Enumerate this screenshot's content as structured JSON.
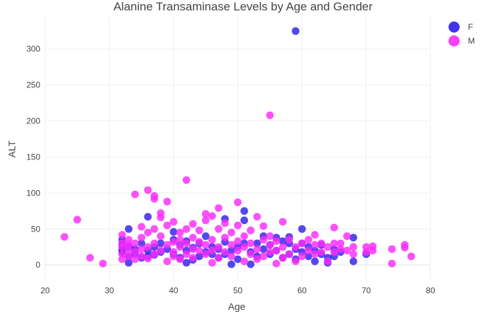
{
  "chart_data": {
    "type": "scatter",
    "title": "Alanine Transaminase Levels by Age and Gender",
    "xlabel": "Age",
    "ylabel": "ALT",
    "xlim": [
      20,
      80
    ],
    "ylim": [
      -22,
      345
    ],
    "xticks": [
      20,
      30,
      40,
      50,
      60,
      70,
      80
    ],
    "yticks": [
      0,
      50,
      100,
      150,
      200,
      250,
      300
    ],
    "grid": true,
    "legend_position": "top-right",
    "series": [
      {
        "name": "F",
        "color": "#2f1eea",
        "points": [
          [
            32,
            18
          ],
          [
            32,
            22
          ],
          [
            32,
            28
          ],
          [
            32,
            35
          ],
          [
            33,
            3
          ],
          [
            33,
            50
          ],
          [
            33,
            12
          ],
          [
            33,
            25
          ],
          [
            34,
            15
          ],
          [
            34,
            22
          ],
          [
            35,
            10
          ],
          [
            35,
            30
          ],
          [
            36,
            67
          ],
          [
            36,
            12
          ],
          [
            36,
            20
          ],
          [
            37,
            14
          ],
          [
            37,
            25
          ],
          [
            38,
            18
          ],
          [
            38,
            30
          ],
          [
            39,
            22
          ],
          [
            40,
            46
          ],
          [
            40,
            15
          ],
          [
            40,
            35
          ],
          [
            41,
            10
          ],
          [
            41,
            28
          ],
          [
            42,
            3
          ],
          [
            42,
            20
          ],
          [
            42,
            33
          ],
          [
            43,
            7
          ],
          [
            43,
            24
          ],
          [
            44,
            12
          ],
          [
            44,
            30
          ],
          [
            45,
            40
          ],
          [
            45,
            18
          ],
          [
            46,
            15
          ],
          [
            46,
            25
          ],
          [
            47,
            22
          ],
          [
            47,
            10
          ],
          [
            48,
            64
          ],
          [
            48,
            32
          ],
          [
            48,
            15
          ],
          [
            49,
            1
          ],
          [
            49,
            20
          ],
          [
            50,
            25
          ],
          [
            50,
            8
          ],
          [
            51,
            75
          ],
          [
            51,
            62
          ],
          [
            51,
            30
          ],
          [
            52,
            1
          ],
          [
            52,
            18
          ],
          [
            53,
            30
          ],
          [
            53,
            12
          ],
          [
            54,
            22
          ],
          [
            54,
            40
          ],
          [
            55,
            15
          ],
          [
            55,
            28
          ],
          [
            56,
            38
          ],
          [
            56,
            20
          ],
          [
            57,
            33
          ],
          [
            57,
            10
          ],
          [
            58,
            30
          ],
          [
            58,
            39
          ],
          [
            58,
            15
          ],
          [
            59,
            325
          ],
          [
            59,
            22
          ],
          [
            59,
            8
          ],
          [
            60,
            50
          ],
          [
            60,
            30
          ],
          [
            60,
            18
          ],
          [
            61,
            12
          ],
          [
            61,
            25
          ],
          [
            62,
            20
          ],
          [
            62,
            5
          ],
          [
            63,
            15
          ],
          [
            63,
            28
          ],
          [
            64,
            3
          ],
          [
            64,
            10
          ],
          [
            65,
            12
          ],
          [
            65,
            22
          ],
          [
            66,
            18
          ],
          [
            68,
            38
          ],
          [
            68,
            5
          ],
          [
            70,
            15
          ]
        ]
      },
      {
        "name": "M",
        "color": "#fa2bfb",
        "points": [
          [
            23,
            39
          ],
          [
            25,
            63
          ],
          [
            27,
            10
          ],
          [
            29,
            2
          ],
          [
            32,
            8
          ],
          [
            32,
            15
          ],
          [
            32,
            25
          ],
          [
            32,
            30
          ],
          [
            32,
            42
          ],
          [
            33,
            12
          ],
          [
            33,
            20
          ],
          [
            33,
            28
          ],
          [
            33,
            35
          ],
          [
            34,
            98
          ],
          [
            34,
            8
          ],
          [
            34,
            18
          ],
          [
            34,
            30
          ],
          [
            35,
            53
          ],
          [
            35,
            12
          ],
          [
            35,
            22
          ],
          [
            35,
            38
          ],
          [
            36,
            104
          ],
          [
            36,
            9
          ],
          [
            36,
            25
          ],
          [
            36,
            45
          ],
          [
            37,
            96
          ],
          [
            37,
            92
          ],
          [
            37,
            15
          ],
          [
            37,
            30
          ],
          [
            37,
            50
          ],
          [
            38,
            72
          ],
          [
            38,
            66
          ],
          [
            38,
            20
          ],
          [
            38,
            40
          ],
          [
            39,
            88
          ],
          [
            39,
            5
          ],
          [
            39,
            28
          ],
          [
            39,
            55
          ],
          [
            40,
            60
          ],
          [
            40,
            18
          ],
          [
            40,
            32
          ],
          [
            40,
            12
          ],
          [
            41,
            45
          ],
          [
            41,
            8
          ],
          [
            41,
            25
          ],
          [
            41,
            35
          ],
          [
            42,
            118
          ],
          [
            42,
            50
          ],
          [
            42,
            15
          ],
          [
            42,
            30
          ],
          [
            43,
            57
          ],
          [
            43,
            22
          ],
          [
            43,
            38
          ],
          [
            43,
            10
          ],
          [
            44,
            48
          ],
          [
            44,
            20
          ],
          [
            44,
            32
          ],
          [
            45,
            71
          ],
          [
            45,
            62
          ],
          [
            45,
            15
          ],
          [
            45,
            28
          ],
          [
            46,
            68
          ],
          [
            46,
            3
          ],
          [
            46,
            35
          ],
          [
            46,
            20
          ],
          [
            47,
            79
          ],
          [
            47,
            50
          ],
          [
            47,
            10
          ],
          [
            47,
            25
          ],
          [
            48,
            58
          ],
          [
            48,
            18
          ],
          [
            48,
            38
          ],
          [
            49,
            45
          ],
          [
            49,
            28
          ],
          [
            49,
            12
          ],
          [
            50,
            87
          ],
          [
            50,
            55
          ],
          [
            50,
            20
          ],
          [
            50,
            33
          ],
          [
            51,
            40
          ],
          [
            51,
            5
          ],
          [
            51,
            25
          ],
          [
            52,
            48
          ],
          [
            52,
            15
          ],
          [
            52,
            30
          ],
          [
            53,
            67
          ],
          [
            53,
            22
          ],
          [
            53,
            8
          ],
          [
            54,
            54
          ],
          [
            54,
            35
          ],
          [
            54,
            12
          ],
          [
            55,
            208
          ],
          [
            55,
            40
          ],
          [
            55,
            18
          ],
          [
            55,
            28
          ],
          [
            56,
            2
          ],
          [
            56,
            20
          ],
          [
            56,
            33
          ],
          [
            57,
            60
          ],
          [
            57,
            25
          ],
          [
            57,
            10
          ],
          [
            58,
            35
          ],
          [
            58,
            15
          ],
          [
            59,
            25
          ],
          [
            59,
            5
          ],
          [
            60,
            30
          ],
          [
            60,
            12
          ],
          [
            61,
            20
          ],
          [
            61,
            35
          ],
          [
            62,
            42
          ],
          [
            62,
            28
          ],
          [
            62,
            15
          ],
          [
            63,
            18
          ],
          [
            63,
            30
          ],
          [
            64,
            25
          ],
          [
            64,
            5
          ],
          [
            65,
            52
          ],
          [
            65,
            30
          ],
          [
            65,
            18
          ],
          [
            66,
            30
          ],
          [
            66,
            22
          ],
          [
            67,
            40
          ],
          [
            67,
            20
          ],
          [
            68,
            25
          ],
          [
            68,
            15
          ],
          [
            70,
            25
          ],
          [
            70,
            18
          ],
          [
            71,
            26
          ],
          [
            71,
            20
          ],
          [
            74,
            22
          ],
          [
            74,
            2
          ],
          [
            76,
            28
          ],
          [
            76,
            24
          ],
          [
            77,
            12
          ]
        ]
      }
    ]
  }
}
